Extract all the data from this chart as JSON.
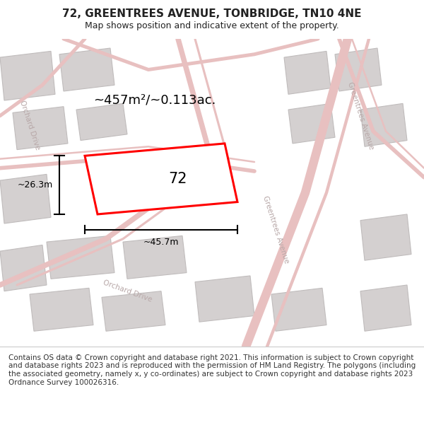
{
  "title": "72, GREENTREES AVENUE, TONBRIDGE, TN10 4NE",
  "subtitle": "Map shows position and indicative extent of the property.",
  "footer": "Contains OS data © Crown copyright and database right 2021. This information is subject to Crown copyright and database rights 2023 and is reproduced with the permission of HM Land Registry. The polygons (including the associated geometry, namely x, y co-ordinates) are subject to Crown copyright and database rights 2023 Ordnance Survey 100026316.",
  "area_text": "~457m²/~0.113ac.",
  "label_72": "72",
  "dim_width": "~45.7m",
  "dim_height": "~26.3m",
  "map_background": "#ece9e9",
  "road_color": "#e8c0c0",
  "building_color": "#d4d0d0",
  "building_edge": "#c0bcbc",
  "highlight_color": "#ff0000",
  "text_color": "#222222",
  "road_label_color": "#b8a8a8",
  "title_fontsize": 11,
  "subtitle_fontsize": 9,
  "footer_fontsize": 7.5
}
